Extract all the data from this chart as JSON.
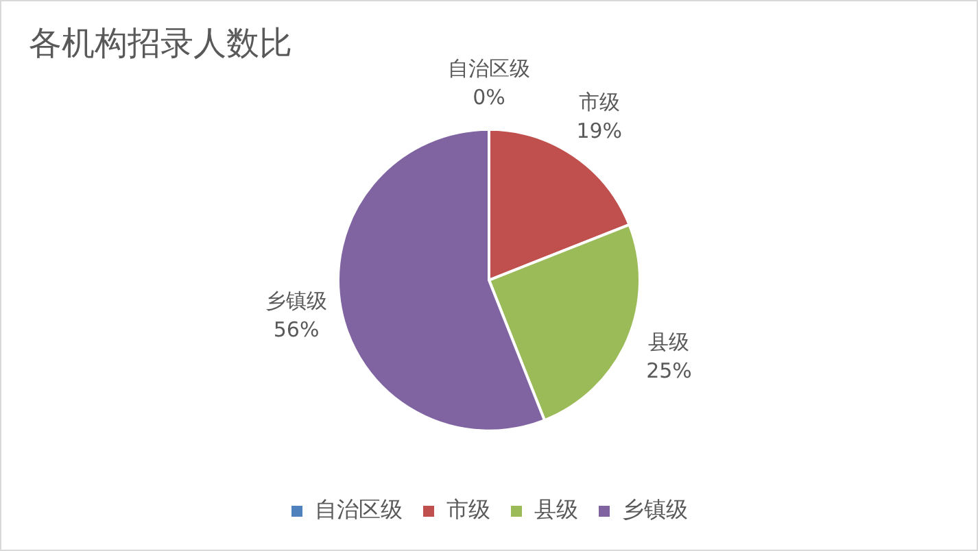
{
  "chart_data": {
    "type": "pie",
    "title": "各机构招录人数比",
    "categories": [
      "自治区级",
      "市级",
      "县级",
      "乡镇级"
    ],
    "values": [
      0,
      19,
      25,
      56
    ],
    "colors": [
      "#4f81bd",
      "#c0504d",
      "#9bbb59",
      "#8064a2"
    ],
    "value_labels": [
      "0%",
      "19%",
      "25%",
      "56%"
    ],
    "legend": "bottom"
  }
}
